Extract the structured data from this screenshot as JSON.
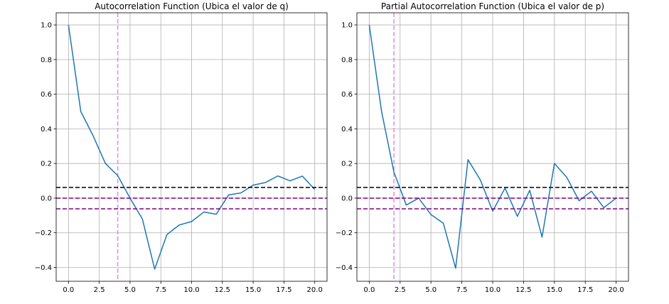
{
  "chart_data": [
    {
      "type": "line",
      "title": "Autocorrelation Function (Ubica el valor de q)",
      "xlabel": "",
      "ylabel": "",
      "xlim": [
        -1,
        21
      ],
      "ylim": [
        -0.48,
        1.07
      ],
      "x_ticks": [
        0,
        2.5,
        5,
        7.5,
        10,
        12.5,
        15,
        17.5,
        20
      ],
      "x_tick_labels": [
        "0.0",
        "2.5",
        "5.0",
        "7.5",
        "10.0",
        "12.5",
        "15.0",
        "17.5",
        "20.0"
      ],
      "y_ticks": [
        -0.4,
        -0.2,
        0,
        0.2,
        0.4,
        0.6,
        0.8,
        1.0
      ],
      "y_tick_labels": [
        "−0.4",
        "−0.2",
        "0.0",
        "0.2",
        "0.4",
        "0.6",
        "0.8",
        "1.0"
      ],
      "grid": true,
      "line_color": "#1f77b4",
      "series": [
        {
          "x": [
            0,
            1,
            2,
            3,
            4,
            5,
            6,
            7,
            8,
            9,
            10,
            11,
            12,
            13,
            14,
            15,
            16,
            17,
            18,
            19,
            20
          ],
          "values": [
            1.0,
            0.5,
            0.36,
            0.2,
            0.13,
            0.0,
            -0.12,
            -0.41,
            -0.21,
            -0.155,
            -0.135,
            -0.08,
            -0.093,
            0.018,
            0.03,
            0.075,
            0.09,
            0.128,
            0.1,
            0.127,
            0.05
          ]
        }
      ],
      "hlines": [
        {
          "y": 0.062,
          "color": "#000000",
          "style": "dashed"
        },
        {
          "y": 0.0,
          "color": "#800080",
          "style": "dashed"
        },
        {
          "y": -0.062,
          "color": "#800080",
          "style": "dashed"
        }
      ],
      "vlines": [
        {
          "x": 4,
          "color": "#ee82ee",
          "style": "dashed"
        }
      ]
    },
    {
      "type": "line",
      "title": "Partial Autocorrelation Function (Ubica el valor de p)",
      "xlabel": "",
      "ylabel": "",
      "xlim": [
        -1,
        21
      ],
      "ylim": [
        -0.48,
        1.07
      ],
      "x_ticks": [
        0,
        2.5,
        5,
        7.5,
        10,
        12.5,
        15,
        17.5,
        20
      ],
      "x_tick_labels": [
        "0.0",
        "2.5",
        "5.0",
        "7.5",
        "10.0",
        "12.5",
        "15.0",
        "17.5",
        "20.0"
      ],
      "y_ticks": [
        -0.4,
        -0.2,
        0,
        0.2,
        0.4,
        0.6,
        0.8,
        1.0
      ],
      "y_tick_labels": [
        "−0.4",
        "−0.2",
        "0.0",
        "0.2",
        "0.4",
        "0.6",
        "0.8",
        "1.0"
      ],
      "grid": true,
      "line_color": "#1f77b4",
      "series": [
        {
          "x": [
            0,
            1,
            2,
            3,
            4,
            5,
            6,
            7,
            8,
            9,
            10,
            11,
            12,
            13,
            14,
            15,
            16,
            17,
            18,
            19,
            20
          ],
          "values": [
            1.0,
            0.5,
            0.15,
            -0.04,
            0.0,
            -0.095,
            -0.145,
            -0.405,
            0.222,
            0.105,
            -0.075,
            0.058,
            -0.105,
            0.045,
            -0.225,
            0.2,
            0.12,
            -0.015,
            0.04,
            -0.055,
            0.0
          ]
        }
      ],
      "hlines": [
        {
          "y": 0.062,
          "color": "#000000",
          "style": "dashed"
        },
        {
          "y": 0.0,
          "color": "#800080",
          "style": "dashed"
        },
        {
          "y": -0.062,
          "color": "#800080",
          "style": "dashed"
        }
      ],
      "vlines": [
        {
          "x": 2,
          "color": "#ee82ee",
          "style": "dashed"
        }
      ]
    }
  ]
}
